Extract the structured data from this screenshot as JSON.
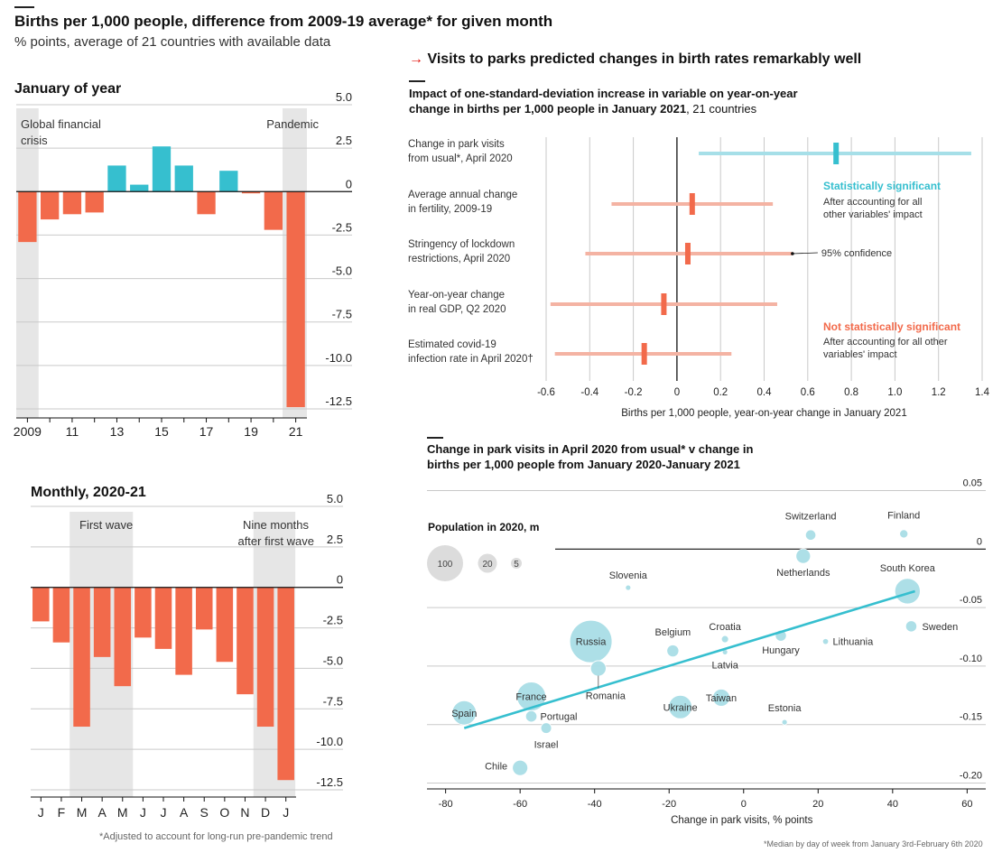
{
  "header": {
    "title": "Births per 1,000 people, difference from 2009-19 average* for given month",
    "subtitle": "% points, average of 21 countries with available data",
    "arrow": "→",
    "right_title": "Visits to parks predicted changes in birth rates remarkably well",
    "footnote_left": "*Adjusted to account for long-run pre-pandemic trend",
    "footnote_right": "*Median by day of week from January 3rd-February 6th 2020"
  },
  "colors": {
    "red": "#f26a4b",
    "teal": "#36bfcf",
    "light_red": "#f4b3a3",
    "light_teal": "#a6dfe8",
    "bubble": "#a9dde6",
    "bubble_dark": "#8fd3de",
    "shade": "#e6e6e6"
  },
  "chart_data": [
    {
      "type": "bar",
      "title": "January of year",
      "x": [
        2009,
        2010,
        2011,
        2012,
        2013,
        2014,
        2015,
        2016,
        2017,
        2018,
        2019,
        2020,
        2021
      ],
      "values": [
        -2.9,
        -1.6,
        -1.3,
        -1.2,
        1.5,
        0.4,
        2.6,
        1.5,
        -1.3,
        1.2,
        -0.1,
        -2.2,
        -12.4
      ],
      "xtick_labels": [
        "2009",
        "11",
        "13",
        "15",
        "17",
        "19",
        "21"
      ],
      "ylim": [
        -12.5,
        5.0
      ],
      "yticks": [
        "5.0",
        "2.5",
        "0",
        "-2.5",
        "-5.0",
        "-7.5",
        "-10.0",
        "-12.5"
      ],
      "annotations": [
        "Global financial crisis",
        "Pandemic"
      ]
    },
    {
      "type": "bar",
      "title": "Monthly, 2020-21",
      "categories": [
        "J",
        "F",
        "M",
        "A",
        "M",
        "J",
        "J",
        "A",
        "S",
        "O",
        "N",
        "D",
        "J"
      ],
      "values": [
        -2.1,
        -3.4,
        -8.6,
        -4.3,
        -6.1,
        -3.1,
        -3.8,
        -5.4,
        -2.6,
        -4.6,
        -6.6,
        -8.6,
        -11.9
      ],
      "ylim": [
        -12.5,
        5.0
      ],
      "yticks": [
        "5.0",
        "2.5",
        "0",
        "-2.5",
        "-5.0",
        "-7.5",
        "-10.0",
        "-12.5"
      ],
      "annotations": [
        "First wave",
        "Nine months after first wave"
      ]
    },
    {
      "type": "coefficient",
      "title": "Impact of one-standard-deviation increase in variable on year-on-year change in births per 1,000 people in January 2021",
      "title_suffix": ", 21 countries",
      "xlabel": "Births per 1,000 people, year-on-year change in January 2021",
      "xlim": [
        -0.6,
        1.4
      ],
      "xticks": [
        "-0.6",
        "-0.4",
        "-0.2",
        "0",
        "0.2",
        "0.4",
        "0.6",
        "0.8",
        "1.0",
        "1.2",
        "1.4"
      ],
      "rows": [
        {
          "label1": "Change in park visits",
          "label2": "from usual*, April 2020",
          "estimate": 0.73,
          "low": 0.1,
          "high": 1.35,
          "significant": true
        },
        {
          "label1": "Average annual change",
          "label2": "in fertility, 2009-19",
          "estimate": 0.07,
          "low": -0.3,
          "high": 0.44,
          "significant": false
        },
        {
          "label1": "Stringency of lockdown",
          "label2": "restrictions, April 2020",
          "estimate": 0.05,
          "low": -0.42,
          "high": 0.53,
          "significant": false
        },
        {
          "label1": "Year-on-year change",
          "label2": "in real GDP, Q2 2020",
          "estimate": -0.06,
          "low": -0.58,
          "high": 0.46,
          "significant": false
        },
        {
          "label1": "Estimated covid-19",
          "label2": "infection rate in April 2020†",
          "estimate": -0.15,
          "low": -0.56,
          "high": 0.25,
          "significant": false
        }
      ],
      "legend": {
        "sig_title": "Statistically significant",
        "sig_text1": "After accounting for all",
        "sig_text2": "other variables' impact",
        "nonsig_title": "Not statistically significant",
        "nonsig_text1": "After accounting for all other",
        "nonsig_text2": "variables' impact",
        "confidence": "95% confidence"
      }
    },
    {
      "type": "scatter",
      "title1": "Change in park visits in April 2020 from usual* v change in",
      "title2": "births per 1,000 people from January 2020-January 2021",
      "xlabel": "Change in park visits, % points",
      "xlim": [
        -85,
        65
      ],
      "ylim": [
        -0.205,
        0.055
      ],
      "xticks": [
        "-80",
        "-60",
        "-40",
        "-20",
        "0",
        "20",
        "40",
        "60"
      ],
      "yticks": [
        "0.05",
        "0",
        "-0.05",
        "-0.10",
        "-0.15",
        "-0.20"
      ],
      "size_legend_title": "Population in 2020, m",
      "size_legend": [
        "100",
        "20",
        "5"
      ],
      "trend": {
        "x1": -75,
        "y1": -0.153,
        "x2": 46,
        "y2": -0.036
      },
      "points": [
        {
          "name": "Switzerland",
          "x": 18,
          "y": 0.012,
          "pop": 8.6
        },
        {
          "name": "Finland",
          "x": 43,
          "y": 0.013,
          "pop": 5.5
        },
        {
          "name": "Netherlands",
          "x": 16,
          "y": -0.006,
          "pop": 17
        },
        {
          "name": "South Korea",
          "x": 44,
          "y": -0.036,
          "pop": 52
        },
        {
          "name": "Slovenia",
          "x": -31,
          "y": -0.033,
          "pop": 2.1
        },
        {
          "name": "Sweden",
          "x": 45,
          "y": -0.066,
          "pop": 10
        },
        {
          "name": "Croatia",
          "x": -5,
          "y": -0.077,
          "pop": 4.1
        },
        {
          "name": "Hungary",
          "x": 10,
          "y": -0.074,
          "pop": 9.8
        },
        {
          "name": "Lithuania",
          "x": 22,
          "y": -0.079,
          "pop": 2.8
        },
        {
          "name": "Latvia",
          "x": -5,
          "y": -0.088,
          "pop": 1.9
        },
        {
          "name": "Belgium",
          "x": -19,
          "y": -0.087,
          "pop": 11.5
        },
        {
          "name": "Russia",
          "x": -41,
          "y": -0.079,
          "pop": 144
        },
        {
          "name": "Romania",
          "x": -39,
          "y": -0.102,
          "pop": 19.3
        },
        {
          "name": "Taiwan",
          "x": -6,
          "y": -0.127,
          "pop": 23.6
        },
        {
          "name": "France",
          "x": -57,
          "y": -0.126,
          "pop": 67
        },
        {
          "name": "Ukraine",
          "x": -17,
          "y": -0.135,
          "pop": 44
        },
        {
          "name": "Spain",
          "x": -75,
          "y": -0.14,
          "pop": 47
        },
        {
          "name": "Portugal",
          "x": -57,
          "y": -0.143,
          "pop": 10.3
        },
        {
          "name": "Estonia",
          "x": 11,
          "y": -0.148,
          "pop": 1.3
        },
        {
          "name": "Israel",
          "x": -53,
          "y": -0.153,
          "pop": 9.2
        },
        {
          "name": "Chile",
          "x": -60,
          "y": -0.187,
          "pop": 19
        }
      ]
    }
  ]
}
